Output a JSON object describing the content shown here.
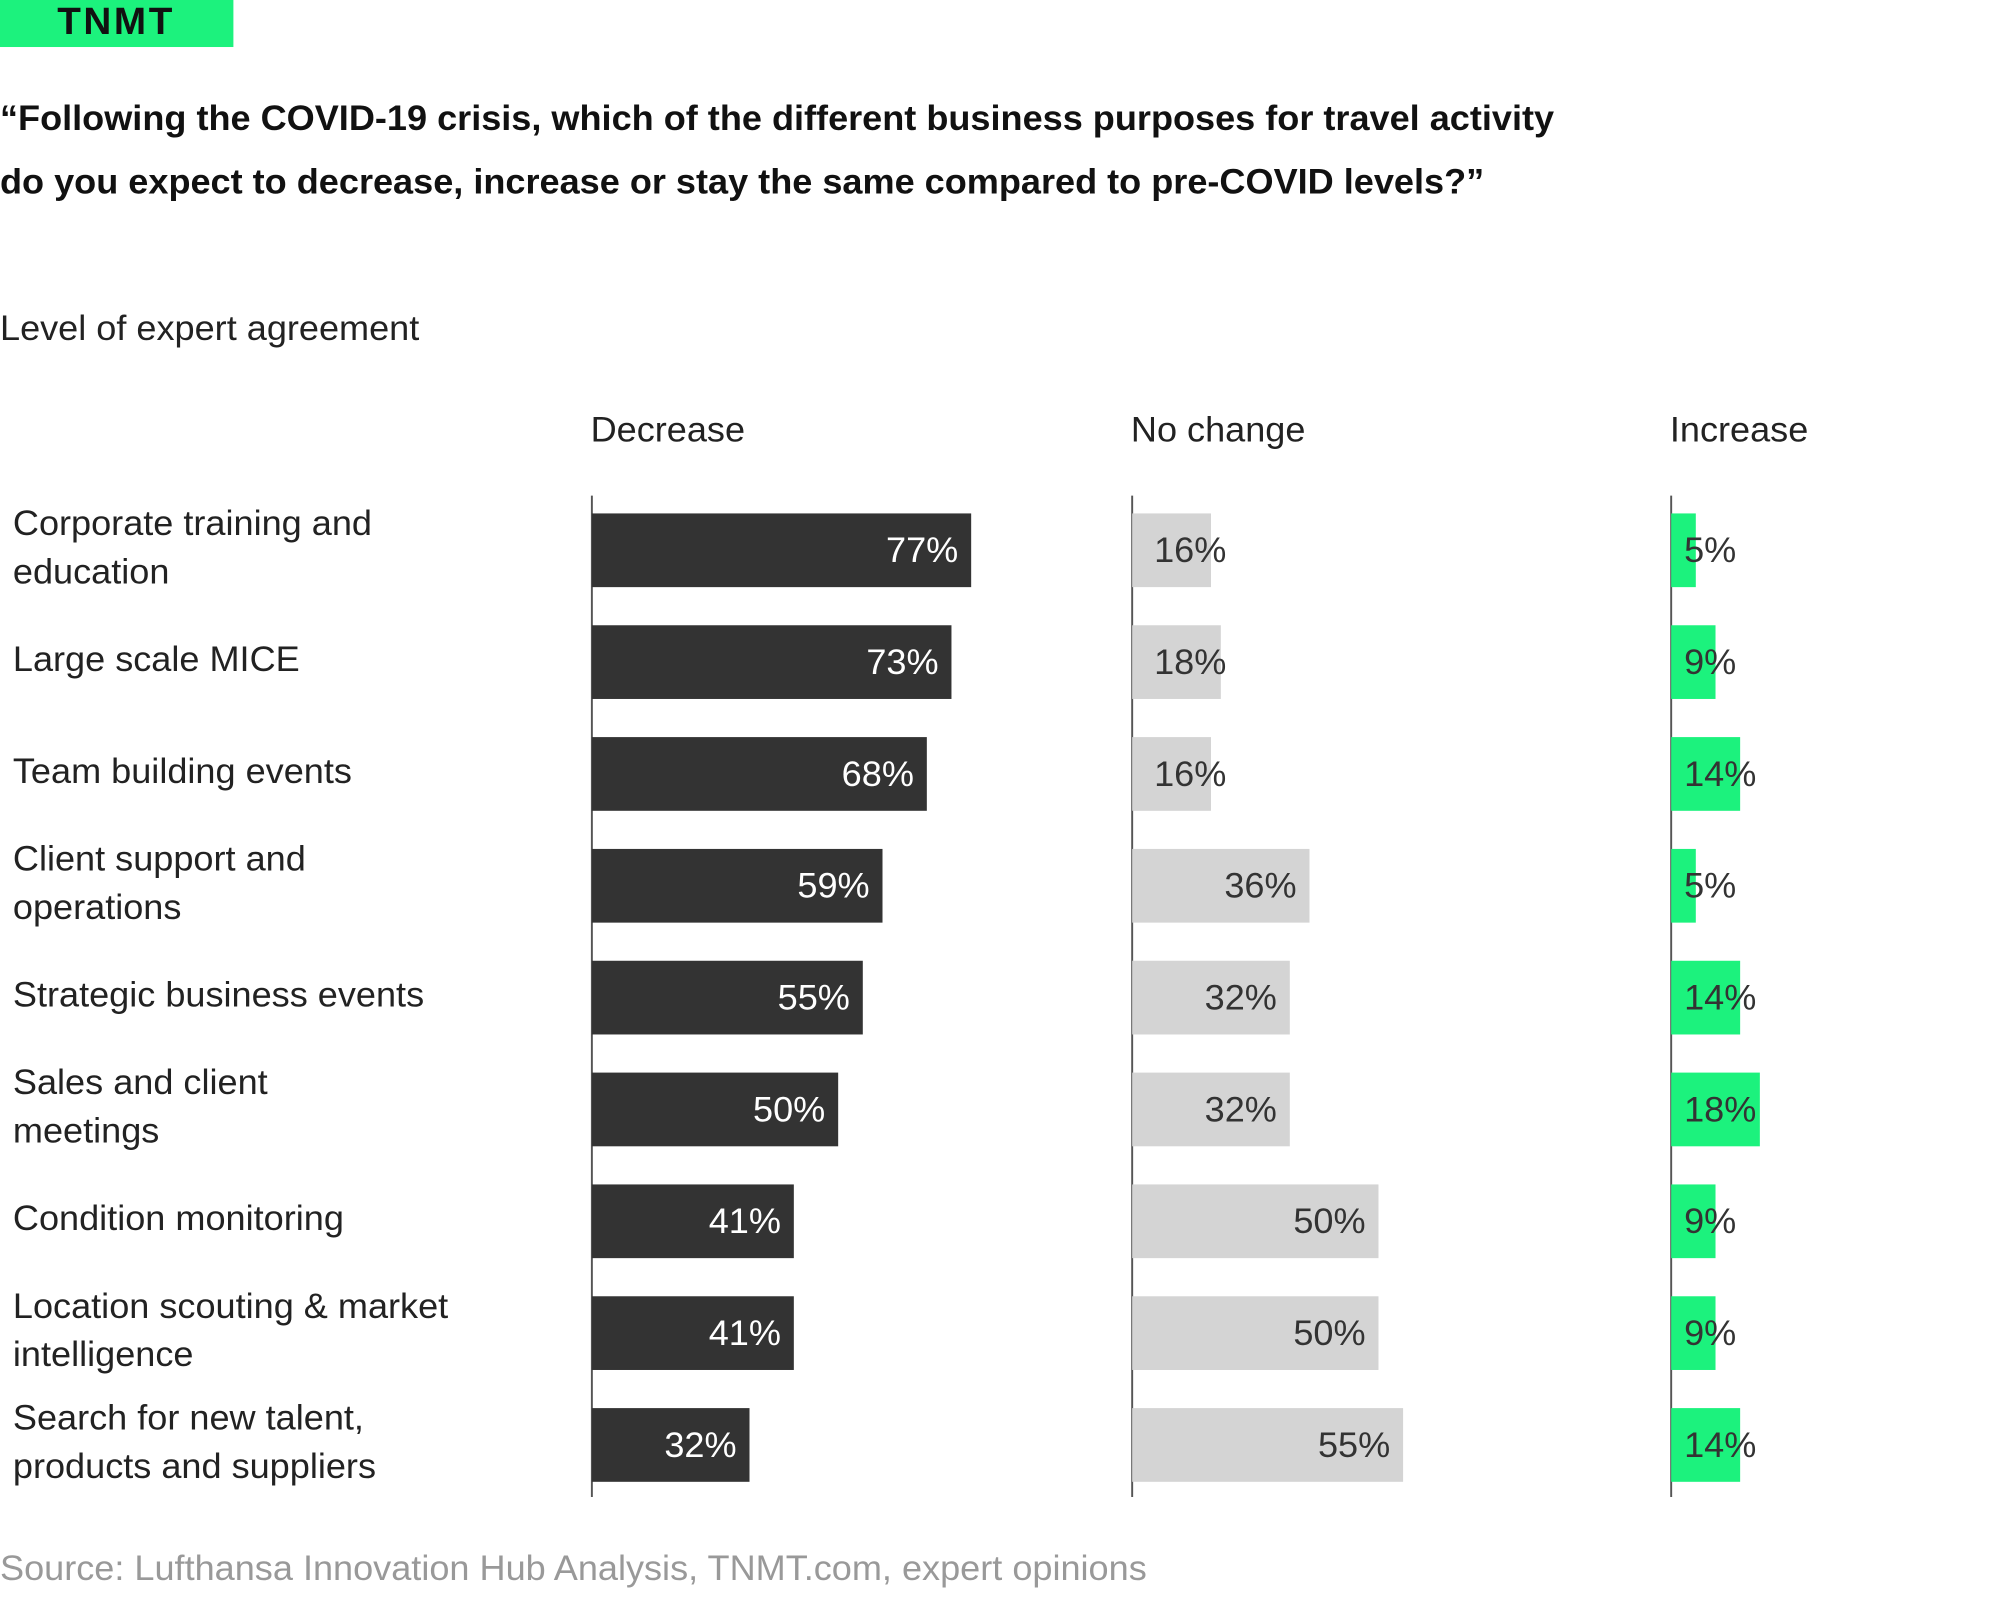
{
  "chart_data": {
    "type": "bar",
    "orientation": "horizontal",
    "logo": "TNMT",
    "title": [
      "“Following the COVID-19 crisis, which of the different business purposes for travel activity",
      "do you expect to decrease, increase or stay the same compared to pre-COVID levels?”"
    ],
    "subtitle": "Level of expert agreement",
    "source": "Source: Lufthansa Innovation Hub Analysis, TNMT.com, expert opinions",
    "categories": [
      [
        "Corporate training and",
        "education"
      ],
      [
        "Large scale MICE"
      ],
      [
        "Team building events"
      ],
      [
        "Client support and",
        "operations"
      ],
      [
        "Strategic business events"
      ],
      [
        "Sales and client",
        "meetings"
      ],
      [
        "Condition monitoring"
      ],
      [
        "Location scouting & market",
        "intelligence"
      ],
      [
        "Search for new talent,",
        "products and suppliers"
      ]
    ],
    "series": [
      {
        "name": "Decrease",
        "color": "#333333",
        "label_color": "#ffffff",
        "values": [
          77,
          73,
          68,
          59,
          55,
          50,
          41,
          41,
          32
        ],
        "value_labels": [
          "77%",
          "73%",
          "68%",
          "59%",
          "55%",
          "50%",
          "41%",
          "41%",
          "32%"
        ]
      },
      {
        "name": "No change",
        "color": "#d4d4d4",
        "label_color": "#333333",
        "values": [
          16,
          18,
          16,
          36,
          32,
          32,
          50,
          50,
          55
        ],
        "value_labels": [
          "16%",
          "18%",
          "16%",
          "36%",
          "32%",
          "32%",
          "50%",
          "50%",
          "55%"
        ]
      },
      {
        "name": "Increase",
        "color": "#1cf27d",
        "label_color": "#333333",
        "values": [
          5,
          9,
          14,
          5,
          14,
          18,
          9,
          9,
          14
        ],
        "value_labels": [
          "5%",
          "9%",
          "14%",
          "5%",
          "14%",
          "18%",
          "9%",
          "9%",
          "14%"
        ]
      }
    ]
  }
}
